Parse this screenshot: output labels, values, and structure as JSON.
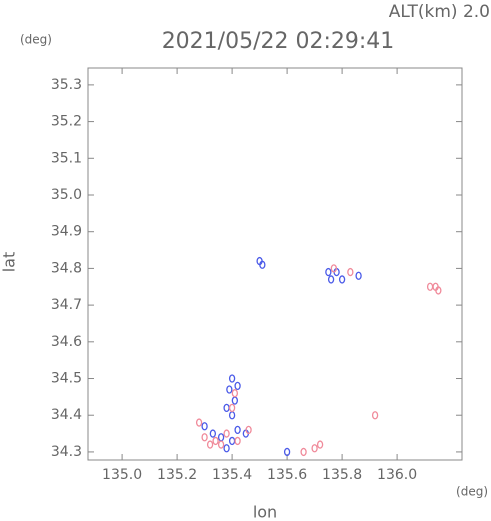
{
  "chart_data": {
    "type": "scatter",
    "title": "2021/05/22 02:29:41",
    "subtitle": "ALT(km) 2.0",
    "x_label": "lon",
    "y_label": "lat",
    "x_unit": "(deg)",
    "y_unit": "(deg)",
    "xlim": [
      134.876,
      136.236
    ],
    "ylim": [
      34.278,
      35.346
    ],
    "xticks": [
      {
        "value": 135,
        "label": "135.0"
      },
      135.2,
      135.4,
      135.6,
      135.8,
      {
        "value": 136,
        "label": "136.0"
      }
    ],
    "yticks": [
      34.3,
      34.4,
      34.5,
      34.6,
      34.7,
      34.8,
      34.9,
      {
        "value": 35,
        "label": "35.0"
      },
      35.1,
      35.2,
      35.3
    ],
    "series": [
      {
        "color": "#4a5ae8",
        "x": [
          135.5,
          135.51,
          135.75,
          135.78,
          135.8,
          135.86,
          135.4,
          135.39,
          135.41,
          135.38,
          135.4,
          135.42,
          135.3,
          135.33,
          135.36,
          135.4,
          135.42,
          135.38,
          135.45,
          135.6,
          135.76
        ],
        "values": [
          34.82,
          34.81,
          34.79,
          34.79,
          34.77,
          34.78,
          34.5,
          34.47,
          34.44,
          34.42,
          34.4,
          34.48,
          34.37,
          34.35,
          34.34,
          34.33,
          34.36,
          34.31,
          34.35,
          34.3,
          34.77
        ]
      },
      {
        "color": "#f08a9a",
        "x": [
          135.77,
          135.83,
          136.14,
          136.15,
          136.12,
          135.41,
          135.4,
          135.3,
          135.32,
          135.34,
          135.36,
          135.38,
          135.42,
          135.46,
          135.7,
          135.72,
          135.92,
          135.28,
          135.66
        ],
        "values": [
          34.8,
          34.79,
          34.75,
          34.74,
          34.75,
          34.46,
          34.42,
          34.34,
          34.32,
          34.33,
          34.32,
          34.35,
          34.33,
          34.36,
          34.31,
          34.32,
          34.4,
          34.38,
          34.3
        ]
      }
    ]
  }
}
